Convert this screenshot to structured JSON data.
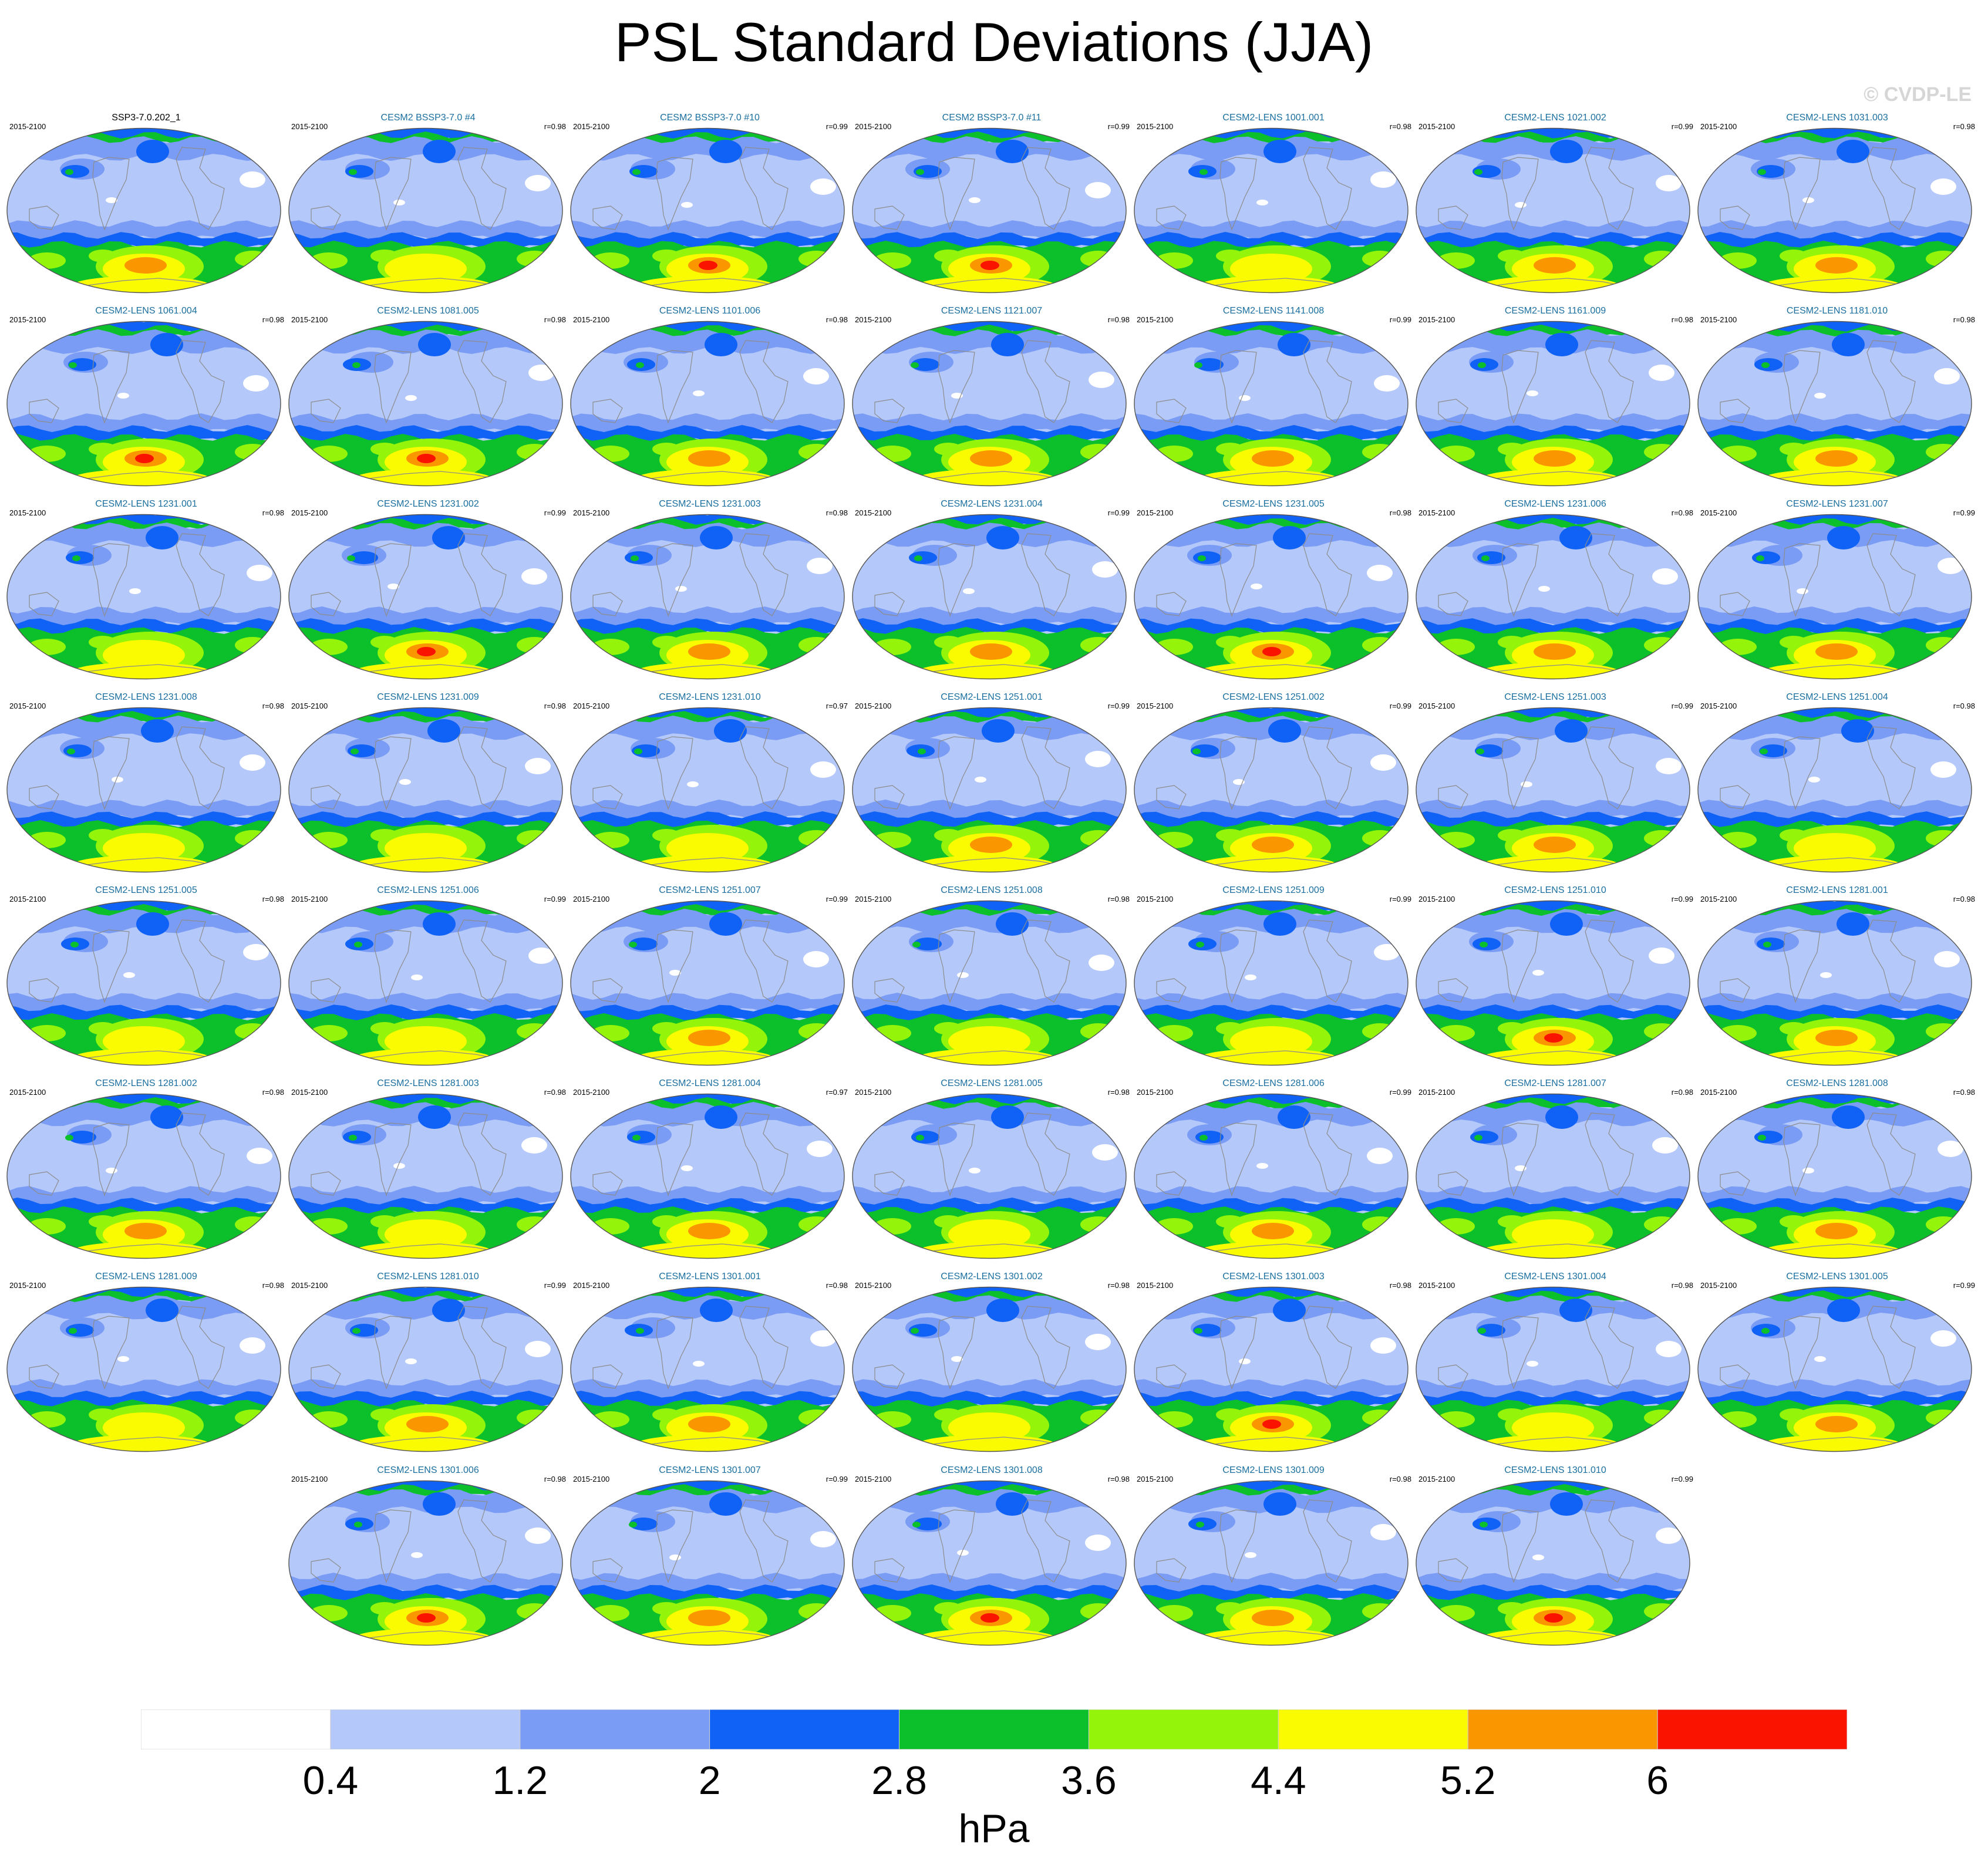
{
  "title": "PSL Standard Deviations (JJA)",
  "credit": "© CVDP-LE",
  "chart_data": {
    "type": "heatmap",
    "units": "hPa",
    "colorbar": {
      "tick_labels": [
        "0.4",
        "1.2",
        "2",
        "2.8",
        "3.6",
        "4.4",
        "5.2",
        "6"
      ],
      "colors": [
        "#ffffff",
        "#b4c8fa",
        "#7b9cf4",
        "#0f62f5",
        "#0cc02c",
        "#94f50a",
        "#fafa00",
        "#fa9600",
        "#fa1400"
      ]
    },
    "panels": [
      {
        "title": "SSP3-7.0.202_1",
        "period": "2015-2100",
        "r": "",
        "obs": true,
        "peak": 2
      },
      {
        "title": "CESM2 BSSP3-7.0 #4",
        "period": "2015-2100",
        "r": "r=0.98",
        "peak": 1
      },
      {
        "title": "CESM2 BSSP3-7.0 #10",
        "period": "2015-2100",
        "r": "r=0.99",
        "peak": 3
      },
      {
        "title": "CESM2 BSSP3-7.0 #11",
        "period": "2015-2100",
        "r": "r=0.99",
        "peak": 3
      },
      {
        "title": "CESM2-LENS 1001.001",
        "period": "2015-2100",
        "r": "r=0.98",
        "peak": 1
      },
      {
        "title": "CESM2-LENS 1021.002",
        "period": "2015-2100",
        "r": "r=0.99",
        "peak": 2
      },
      {
        "title": "CESM2-LENS 1031.003",
        "period": "2015-2100",
        "r": "r=0.98",
        "peak": 2
      },
      {
        "title": "CESM2-LENS 1061.004",
        "period": "2015-2100",
        "r": "r=0.98",
        "peak": 3
      },
      {
        "title": "CESM2-LENS 1081.005",
        "period": "2015-2100",
        "r": "r=0.98",
        "peak": 3
      },
      {
        "title": "CESM2-LENS 1101.006",
        "period": "2015-2100",
        "r": "r=0.98",
        "peak": 2
      },
      {
        "title": "CESM2-LENS 1121.007",
        "period": "2015-2100",
        "r": "r=0.98",
        "peak": 2
      },
      {
        "title": "CESM2-LENS 1141.008",
        "period": "2015-2100",
        "r": "r=0.99",
        "peak": 2
      },
      {
        "title": "CESM2-LENS 1161.009",
        "period": "2015-2100",
        "r": "r=0.98",
        "peak": 2
      },
      {
        "title": "CESM2-LENS 1181.010",
        "period": "2015-2100",
        "r": "r=0.98",
        "peak": 2
      },
      {
        "title": "CESM2-LENS 1231.001",
        "period": "2015-2100",
        "r": "r=0.98",
        "peak": 1
      },
      {
        "title": "CESM2-LENS 1231.002",
        "period": "2015-2100",
        "r": "r=0.99",
        "peak": 3
      },
      {
        "title": "CESM2-LENS 1231.003",
        "period": "2015-2100",
        "r": "r=0.98",
        "peak": 2
      },
      {
        "title": "CESM2-LENS 1231.004",
        "period": "2015-2100",
        "r": "r=0.99",
        "peak": 2
      },
      {
        "title": "CESM2-LENS 1231.005",
        "period": "2015-2100",
        "r": "r=0.98",
        "peak": 3
      },
      {
        "title": "CESM2-LENS 1231.006",
        "period": "2015-2100",
        "r": "r=0.98",
        "peak": 2
      },
      {
        "title": "CESM2-LENS 1231.007",
        "period": "2015-2100",
        "r": "r=0.99",
        "peak": 2
      },
      {
        "title": "CESM2-LENS 1231.008",
        "period": "2015-2100",
        "r": "r=0.98",
        "peak": 1
      },
      {
        "title": "CESM2-LENS 1231.009",
        "period": "2015-2100",
        "r": "r=0.98",
        "peak": 1
      },
      {
        "title": "CESM2-LENS 1231.010",
        "period": "2015-2100",
        "r": "r=0.97",
        "peak": 1
      },
      {
        "title": "CESM2-LENS 1251.001",
        "period": "2015-2100",
        "r": "r=0.99",
        "peak": 2
      },
      {
        "title": "CESM2-LENS 1251.002",
        "period": "2015-2100",
        "r": "r=0.99",
        "peak": 2
      },
      {
        "title": "CESM2-LENS 1251.003",
        "period": "2015-2100",
        "r": "r=0.99",
        "peak": 2
      },
      {
        "title": "CESM2-LENS 1251.004",
        "period": "2015-2100",
        "r": "r=0.98",
        "peak": 1
      },
      {
        "title": "CESM2-LENS 1251.005",
        "period": "2015-2100",
        "r": "r=0.98",
        "peak": 1
      },
      {
        "title": "CESM2-LENS 1251.006",
        "period": "2015-2100",
        "r": "r=0.99",
        "peak": 1
      },
      {
        "title": "CESM2-LENS 1251.007",
        "period": "2015-2100",
        "r": "r=0.99",
        "peak": 2
      },
      {
        "title": "CESM2-LENS 1251.008",
        "period": "2015-2100",
        "r": "r=0.98",
        "peak": 1
      },
      {
        "title": "CESM2-LENS 1251.009",
        "period": "2015-2100",
        "r": "r=0.99",
        "peak": 1
      },
      {
        "title": "CESM2-LENS 1251.010",
        "period": "2015-2100",
        "r": "r=0.99",
        "peak": 3
      },
      {
        "title": "CESM2-LENS 1281.001",
        "period": "2015-2100",
        "r": "r=0.98",
        "peak": 2
      },
      {
        "title": "CESM2-LENS 1281.002",
        "period": "2015-2100",
        "r": "r=0.98",
        "peak": 2
      },
      {
        "title": "CESM2-LENS 1281.003",
        "period": "2015-2100",
        "r": "r=0.98",
        "peak": 1
      },
      {
        "title": "CESM2-LENS 1281.004",
        "period": "2015-2100",
        "r": "r=0.97",
        "peak": 2
      },
      {
        "title": "CESM2-LENS 1281.005",
        "period": "2015-2100",
        "r": "r=0.98",
        "peak": 1
      },
      {
        "title": "CESM2-LENS 1281.006",
        "period": "2015-2100",
        "r": "r=0.99",
        "peak": 2
      },
      {
        "title": "CESM2-LENS 1281.007",
        "period": "2015-2100",
        "r": "r=0.98",
        "peak": 1
      },
      {
        "title": "CESM2-LENS 1281.008",
        "period": "2015-2100",
        "r": "r=0.98",
        "peak": 2
      },
      {
        "title": "CESM2-LENS 1281.009",
        "period": "2015-2100",
        "r": "r=0.98",
        "peak": 1
      },
      {
        "title": "CESM2-LENS 1281.010",
        "period": "2015-2100",
        "r": "r=0.99",
        "peak": 2
      },
      {
        "title": "CESM2-LENS 1301.001",
        "period": "2015-2100",
        "r": "r=0.98",
        "peak": 2
      },
      {
        "title": "CESM2-LENS 1301.002",
        "period": "2015-2100",
        "r": "r=0.98",
        "peak": 1
      },
      {
        "title": "CESM2-LENS 1301.003",
        "period": "2015-2100",
        "r": "r=0.98",
        "peak": 3
      },
      {
        "title": "CESM2-LENS 1301.004",
        "period": "2015-2100",
        "r": "r=0.98",
        "peak": 1
      },
      {
        "title": "CESM2-LENS 1301.005",
        "period": "2015-2100",
        "r": "r=0.99",
        "peak": 2
      },
      {
        "title": "CESM2-LENS 1301.006",
        "period": "2015-2100",
        "r": "r=0.98",
        "peak": 3
      },
      {
        "title": "CESM2-LENS 1301.007",
        "period": "2015-2100",
        "r": "r=0.99",
        "peak": 2
      },
      {
        "title": "CESM2-LENS 1301.008",
        "period": "2015-2100",
        "r": "r=0.98",
        "peak": 3
      },
      {
        "title": "CESM2-LENS 1301.009",
        "period": "2015-2100",
        "r": "r=0.98",
        "peak": 2
      },
      {
        "title": "CESM2-LENS 1301.010",
        "period": "2015-2100",
        "r": "r=0.99",
        "peak": 3
      }
    ]
  }
}
